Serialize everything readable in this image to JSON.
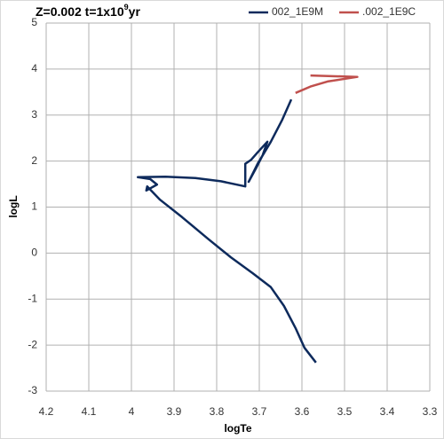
{
  "chart_data": {
    "type": "line",
    "title": [
      "Z=0.002 t=1x10",
      "9",
      "yr"
    ],
    "x_label": "logTe",
    "y_label": "logL",
    "xlim": [
      4.2,
      3.3
    ],
    "ylim": [
      -3,
      5
    ],
    "xticks": [
      4.2,
      4.1,
      4,
      3.9,
      3.8,
      3.7,
      3.6,
      3.5,
      3.4,
      3.3
    ],
    "yticks": [
      -3,
      -2,
      -1,
      0,
      1,
      2,
      3,
      4,
      5
    ],
    "grid": true,
    "legend": "top",
    "series": [
      {
        "name": "002_1E9M",
        "color": "#0d2a5c",
        "x": [
          3.567,
          3.594,
          3.615,
          3.642,
          3.673,
          3.715,
          3.767,
          3.819,
          3.881,
          3.933,
          3.963,
          3.965,
          3.94,
          3.956,
          3.985,
          3.92,
          3.85,
          3.79,
          3.733,
          3.733,
          3.719,
          3.704,
          3.681,
          3.692,
          3.708,
          3.725,
          3.704,
          3.673,
          3.646,
          3.625
        ],
        "values": [
          -2.38,
          -2.06,
          -1.63,
          -1.15,
          -0.74,
          -0.44,
          -0.09,
          0.3,
          0.78,
          1.16,
          1.45,
          1.36,
          1.49,
          1.61,
          1.65,
          1.66,
          1.63,
          1.56,
          1.45,
          1.94,
          2.03,
          2.19,
          2.42,
          2.13,
          1.84,
          1.55,
          1.94,
          2.42,
          2.9,
          3.34
        ]
      },
      {
        "name": ".002_1E9C",
        "color": "#c0504d",
        "x": [
          3.615,
          3.58,
          3.54,
          3.47,
          3.58
        ],
        "values": [
          3.48,
          3.62,
          3.73,
          3.83,
          3.86
        ]
      }
    ]
  }
}
